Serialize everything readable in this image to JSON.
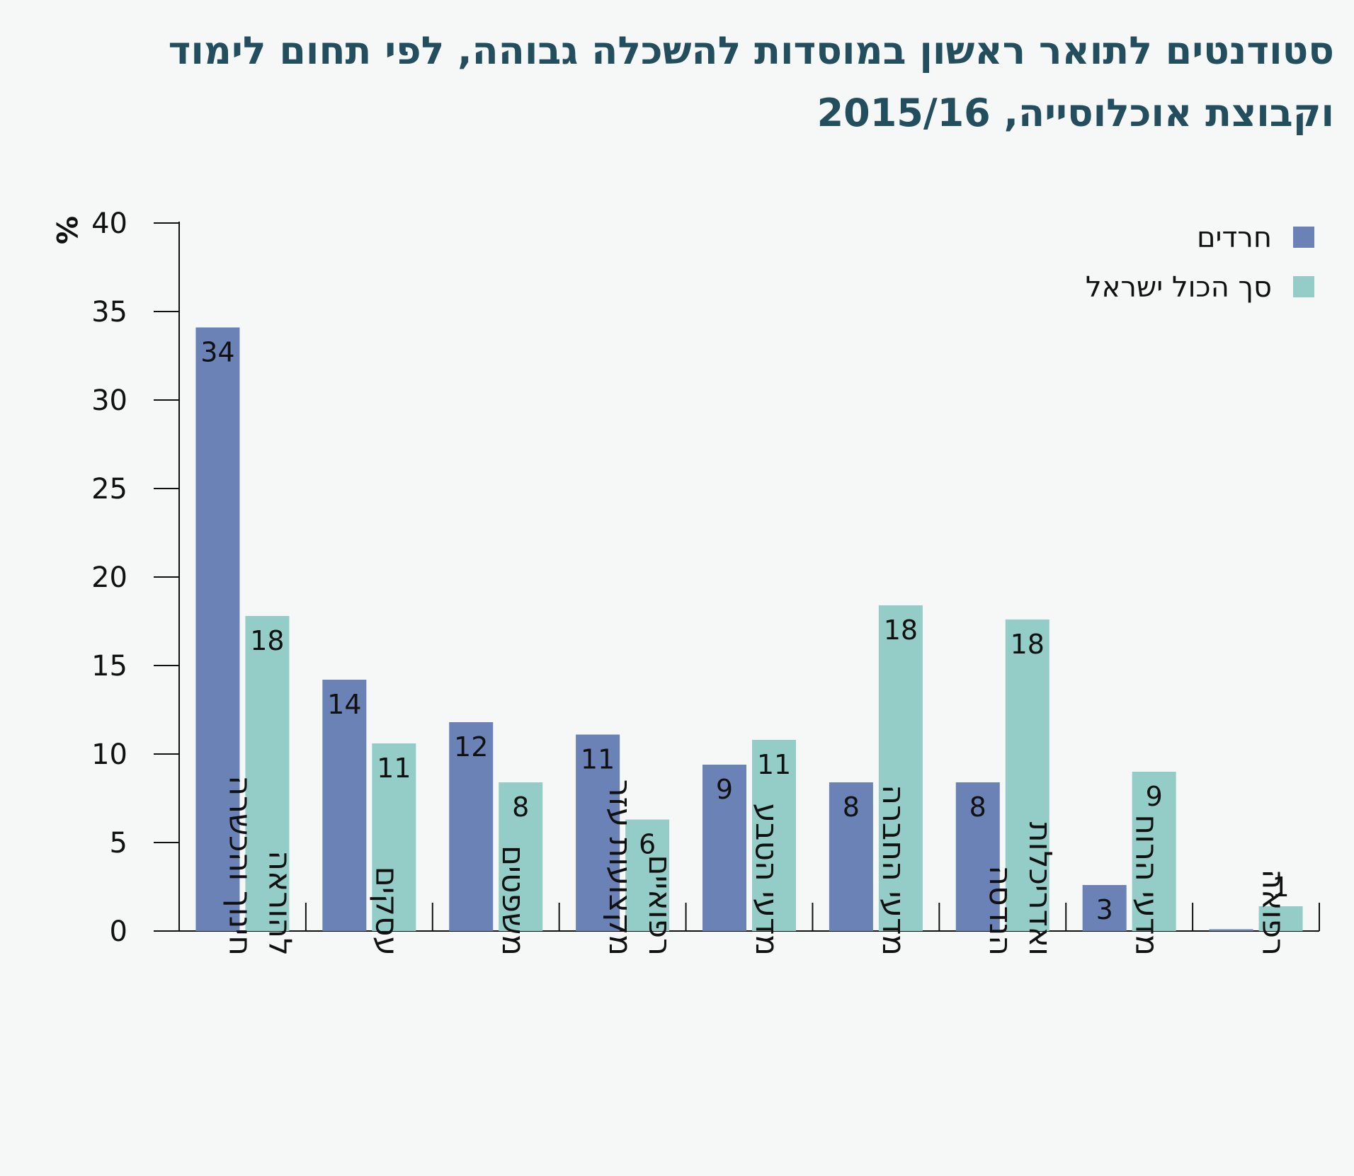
{
  "title_lines": [
    "סטודנטים לתואר ראשון במוסדות להשכלה גבוהה, לפי תחום לימוד",
    "וקבוצת אוכלוסייה, 2015/16"
  ],
  "colors": {
    "haredim": "#6a82b6",
    "total": "#94cdc7",
    "axis": "#111111",
    "text": "#111111",
    "title": "#234e5e"
  },
  "chart_data": {
    "type": "bar",
    "title": "סטודנטים לתואר ראשון במוסדות להשכלה גבוהה, לפי תחום לימוד וקבוצת אוכלוסייה, 2015/16",
    "ylabel": "%",
    "ylim": [
      0,
      40
    ],
    "yticks": [
      0,
      5,
      10,
      15,
      20,
      25,
      30,
      35,
      40
    ],
    "grid": false,
    "legend_position": "top-right",
    "categories": [
      "חינוך והכשרה להוראה",
      "עסקים",
      "משפטים",
      "מקצועות עזר רפואיים",
      "מדעי הטבע",
      "מדעי החברה",
      "הנדסה ואדריכלות",
      "מדעי הרוח",
      "רפואה"
    ],
    "category_lines": [
      [
        "חינוך והכשרה",
        "להוראה"
      ],
      [
        "עסקים"
      ],
      [
        "משפטים"
      ],
      [
        "מקצועות עזר",
        "רפואיים"
      ],
      [
        "מדעי הטבע"
      ],
      [
        "מדעי החברה"
      ],
      [
        "הנדסה",
        "ואדריכלות"
      ],
      [
        "מדעי הרוח"
      ],
      [
        "רפואה"
      ]
    ],
    "series": [
      {
        "name": "חרדים",
        "color_key": "haredim",
        "values": [
          34.1,
          14.2,
          11.8,
          11.1,
          9.4,
          8.4,
          8.4,
          2.6,
          0.1
        ],
        "labels": [
          "34",
          "14",
          "12",
          "11",
          "9",
          "8",
          "8",
          "3",
          ""
        ]
      },
      {
        "name": "סך הכול ישראל",
        "color_key": "total",
        "values": [
          17.8,
          10.6,
          8.4,
          6.3,
          10.8,
          18.4,
          17.6,
          9.0,
          1.4
        ],
        "labels": [
          "18",
          "11",
          "8",
          "6",
          "11",
          "18",
          "18",
          "9",
          "1"
        ]
      }
    ]
  }
}
